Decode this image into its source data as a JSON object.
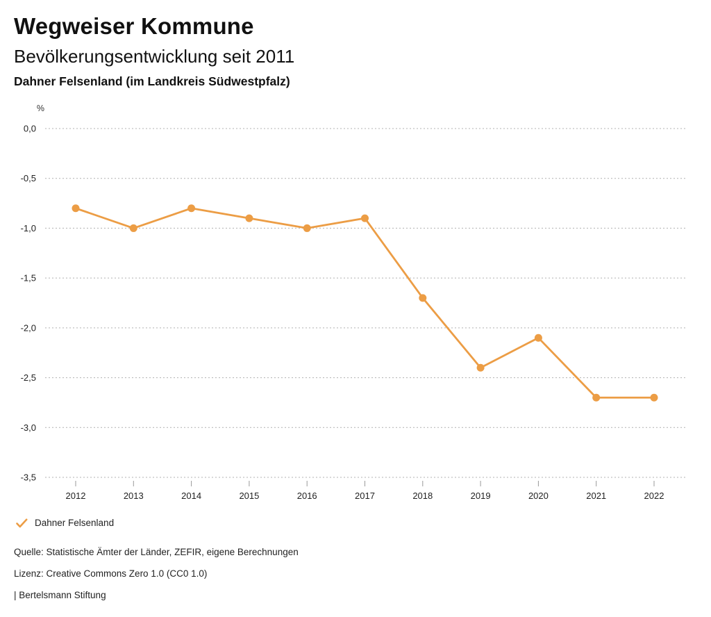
{
  "header": {
    "title": "Wegweiser Kommune",
    "subtitle": "Bevölkerungsentwicklung seit 2011",
    "region": "Dahner Felsenland (im Landkreis Südwestpfalz)"
  },
  "chart_data": {
    "type": "line",
    "title": "Bevölkerungsentwicklung seit 2011",
    "subtitle": "Dahner Felsenland (im Landkreis Südwestpfalz)",
    "unit": "%",
    "categories": [
      "2012",
      "2013",
      "2014",
      "2015",
      "2016",
      "2017",
      "2018",
      "2019",
      "2020",
      "2021",
      "2022"
    ],
    "series": [
      {
        "name": "Dahner Felsenland",
        "values": [
          -0.8,
          -1.0,
          -0.8,
          -0.9,
          -1.0,
          -0.9,
          -1.7,
          -2.4,
          -2.1,
          -2.7,
          -2.7
        ]
      }
    ],
    "ylim": [
      -3.5,
      0.0
    ],
    "ytick_values": [
      0.0,
      -0.5,
      -1.0,
      -1.5,
      -2.0,
      -2.5,
      -3.0,
      -3.5
    ],
    "ytick_labels": [
      "0,0",
      "-0,5",
      "-1,0",
      "-1,5",
      "-2,0",
      "-2,5",
      "-3,0",
      "-3,5"
    ],
    "grid": "horizontal-dashed",
    "marker": "circle",
    "legend_position": "bottom-left"
  },
  "legend": {
    "icon": "check-icon",
    "label": "Dahner Felsenland"
  },
  "footer": {
    "source": "Quelle: Statistische Ämter der Länder, ZEFIR, eigene Berechnungen",
    "license": "Lizenz: Creative Commons Zero 1.0 (CC0 1.0)",
    "attribution": "| Bertelsmann Stiftung"
  },
  "colors": {
    "accent": "#EC9D45",
    "gridline": "#b0b0b0",
    "tick": "#999999",
    "axis_text": "#222222",
    "text_primary": "#111111"
  }
}
